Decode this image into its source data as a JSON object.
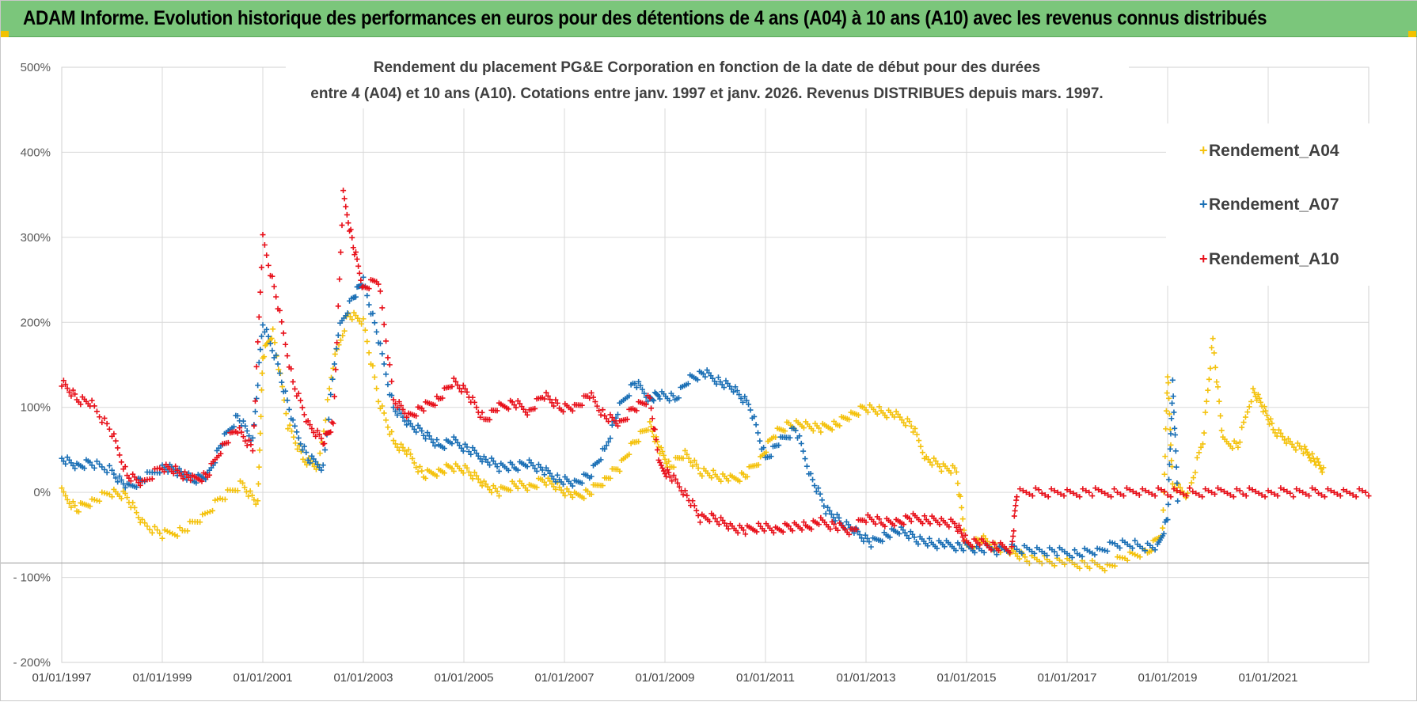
{
  "header": {
    "title": "ADAM Informe. Evolution historique des performances en euros pour des détentions de 4 ans (A04) à 10 ans (A10) avec les revenus connus distribués",
    "background": "#7bc67b"
  },
  "chart_data": {
    "type": "scatter",
    "title_line1": "Rendement du placement PG&E Corporation en fonction de la date de début pour des durées",
    "title_line2": "entre 4 (A04) et 10 ans (A10).  Cotations entre janv. 1997 et janv. 2026.  Revenus DISTRIBUES depuis mars. 1997.",
    "xlabel": "",
    "ylabel": "",
    "xlim": [
      1997.0,
      2023.0
    ],
    "ylim": [
      -200,
      500
    ],
    "y_ticks": [
      500,
      400,
      300,
      200,
      100,
      0,
      -100,
      -200
    ],
    "y_tick_labels": [
      "500%",
      "400%",
      "300%",
      "200%",
      "100%",
      "0%",
      "- 100%",
      "- 200%"
    ],
    "x_ticks": [
      1997,
      1999,
      2001,
      2003,
      2005,
      2007,
      2009,
      2011,
      2013,
      2015,
      2017,
      2019,
      2021
    ],
    "x_tick_labels": [
      "01/01/1997",
      "01/01/1999",
      "01/01/2001",
      "01/01/2003",
      "01/01/2005",
      "01/01/2007",
      "01/01/2009",
      "01/01/2011",
      "01/01/2013",
      "01/01/2015",
      "01/01/2017",
      "01/01/2019",
      "01/01/2021"
    ],
    "reference_line_y": -83,
    "grid": true,
    "legend_position": "top-right",
    "marker": "+",
    "series": [
      {
        "name": "Rendement_A04",
        "color": "#f4c20d",
        "points": [
          [
            1997.0,
            0
          ],
          [
            1997.3,
            -20
          ],
          [
            1997.6,
            -10
          ],
          [
            1998.0,
            0
          ],
          [
            1998.3,
            -5
          ],
          [
            1998.6,
            -35
          ],
          [
            1999.0,
            -50
          ],
          [
            1999.4,
            -45
          ],
          [
            1999.8,
            -30
          ],
          [
            2000.2,
            -5
          ],
          [
            2000.6,
            10
          ],
          [
            2000.9,
            -15
          ],
          [
            2001.0,
            160
          ],
          [
            2001.2,
            190
          ],
          [
            2001.5,
            80
          ],
          [
            2001.8,
            40
          ],
          [
            2002.1,
            30
          ],
          [
            2002.4,
            150
          ],
          [
            2002.7,
            210
          ],
          [
            2003.0,
            200
          ],
          [
            2003.3,
            110
          ],
          [
            2003.6,
            60
          ],
          [
            2003.9,
            45
          ],
          [
            2004.2,
            20
          ],
          [
            2004.5,
            25
          ],
          [
            2004.8,
            30
          ],
          [
            2005.1,
            25
          ],
          [
            2005.4,
            10
          ],
          [
            2005.7,
            0
          ],
          [
            2006.0,
            10
          ],
          [
            2006.3,
            5
          ],
          [
            2006.6,
            15
          ],
          [
            2006.9,
            5
          ],
          [
            2007.2,
            -5
          ],
          [
            2007.5,
            0
          ],
          [
            2007.8,
            15
          ],
          [
            2008.1,
            30
          ],
          [
            2008.4,
            60
          ],
          [
            2008.7,
            80
          ],
          [
            2008.9,
            50
          ],
          [
            2009.1,
            30
          ],
          [
            2009.4,
            45
          ],
          [
            2009.7,
            25
          ],
          [
            2010.0,
            20
          ],
          [
            2010.3,
            15
          ],
          [
            2010.6,
            20
          ],
          [
            2010.9,
            40
          ],
          [
            2011.2,
            70
          ],
          [
            2011.5,
            80
          ],
          [
            2011.8,
            80
          ],
          [
            2012.1,
            75
          ],
          [
            2012.4,
            80
          ],
          [
            2012.7,
            90
          ],
          [
            2013.0,
            100
          ],
          [
            2013.3,
            95
          ],
          [
            2013.6,
            90
          ],
          [
            2013.9,
            80
          ],
          [
            2014.2,
            40
          ],
          [
            2014.5,
            30
          ],
          [
            2014.8,
            25
          ],
          [
            2015.0,
            -65
          ],
          [
            2015.3,
            -55
          ],
          [
            2015.6,
            -65
          ],
          [
            2015.9,
            -70
          ],
          [
            2016.2,
            -78
          ],
          [
            2016.6,
            -80
          ],
          [
            2017.0,
            -83
          ],
          [
            2017.4,
            -85
          ],
          [
            2017.8,
            -87
          ],
          [
            2018.2,
            -75
          ],
          [
            2018.6,
            -70
          ],
          [
            2018.9,
            -45
          ],
          [
            2019.0,
            140
          ],
          [
            2019.1,
            10
          ],
          [
            2019.4,
            -5
          ],
          [
            2019.7,
            60
          ],
          [
            2019.9,
            180
          ],
          [
            2020.1,
            60
          ],
          [
            2020.4,
            55
          ],
          [
            2020.7,
            120
          ],
          [
            2020.9,
            100
          ],
          [
            2021.1,
            75
          ],
          [
            2021.4,
            60
          ],
          [
            2021.7,
            50
          ],
          [
            2021.9,
            40
          ],
          [
            2022.1,
            25
          ]
        ]
      },
      {
        "name": "Rendement_A07",
        "color": "#1a6fb5",
        "points": [
          [
            1997.0,
            40
          ],
          [
            1997.3,
            30
          ],
          [
            1997.6,
            35
          ],
          [
            1998.0,
            25
          ],
          [
            1998.3,
            5
          ],
          [
            1998.6,
            15
          ],
          [
            1999.0,
            30
          ],
          [
            1999.3,
            25
          ],
          [
            1999.6,
            15
          ],
          [
            1999.9,
            20
          ],
          [
            2000.2,
            60
          ],
          [
            2000.5,
            90
          ],
          [
            2000.8,
            60
          ],
          [
            2001.0,
            200
          ],
          [
            2001.3,
            150
          ],
          [
            2001.6,
            80
          ],
          [
            2001.9,
            40
          ],
          [
            2002.2,
            30
          ],
          [
            2002.5,
            190
          ],
          [
            2002.8,
            230
          ],
          [
            2003.0,
            250
          ],
          [
            2003.3,
            180
          ],
          [
            2003.6,
            100
          ],
          [
            2003.9,
            80
          ],
          [
            2004.2,
            70
          ],
          [
            2004.5,
            55
          ],
          [
            2004.8,
            60
          ],
          [
            2005.1,
            50
          ],
          [
            2005.4,
            40
          ],
          [
            2005.7,
            30
          ],
          [
            2006.0,
            30
          ],
          [
            2006.3,
            35
          ],
          [
            2006.6,
            25
          ],
          [
            2006.9,
            15
          ],
          [
            2007.2,
            10
          ],
          [
            2007.5,
            20
          ],
          [
            2007.8,
            50
          ],
          [
            2008.1,
            100
          ],
          [
            2008.4,
            130
          ],
          [
            2008.7,
            110
          ],
          [
            2008.9,
            115
          ],
          [
            2009.2,
            110
          ],
          [
            2009.5,
            135
          ],
          [
            2009.8,
            140
          ],
          [
            2010.1,
            130
          ],
          [
            2010.4,
            120
          ],
          [
            2010.7,
            100
          ],
          [
            2011.0,
            40
          ],
          [
            2011.3,
            60
          ],
          [
            2011.6,
            75
          ],
          [
            2011.9,
            20
          ],
          [
            2012.2,
            -20
          ],
          [
            2012.5,
            -35
          ],
          [
            2012.8,
            -45
          ],
          [
            2013.1,
            -60
          ],
          [
            2013.4,
            -50
          ],
          [
            2013.7,
            -45
          ],
          [
            2014.0,
            -55
          ],
          [
            2014.3,
            -60
          ],
          [
            2014.6,
            -62
          ],
          [
            2014.9,
            -64
          ],
          [
            2015.2,
            -66
          ],
          [
            2015.6,
            -68
          ],
          [
            2016.0,
            -66
          ],
          [
            2016.4,
            -68
          ],
          [
            2016.8,
            -70
          ],
          [
            2017.2,
            -72
          ],
          [
            2017.6,
            -70
          ],
          [
            2018.0,
            -60
          ],
          [
            2018.4,
            -62
          ],
          [
            2018.8,
            -66
          ],
          [
            2019.0,
            -30
          ],
          [
            2019.1,
            130
          ],
          [
            2019.2,
            -5
          ]
        ]
      },
      {
        "name": "Rendement_A10",
        "color": "#e8101a",
        "points": [
          [
            1997.0,
            130
          ],
          [
            1997.3,
            110
          ],
          [
            1997.6,
            105
          ],
          [
            1998.0,
            70
          ],
          [
            1998.3,
            20
          ],
          [
            1998.6,
            10
          ],
          [
            1999.0,
            30
          ],
          [
            1999.3,
            25
          ],
          [
            1999.6,
            15
          ],
          [
            1999.9,
            20
          ],
          [
            2000.2,
            55
          ],
          [
            2000.5,
            75
          ],
          [
            2000.8,
            50
          ],
          [
            2001.0,
            300
          ],
          [
            2001.3,
            220
          ],
          [
            2001.6,
            130
          ],
          [
            2001.9,
            80
          ],
          [
            2002.2,
            60
          ],
          [
            2002.4,
            80
          ],
          [
            2002.6,
            350
          ],
          [
            2002.8,
            290
          ],
          [
            2003.0,
            240
          ],
          [
            2003.3,
            250
          ],
          [
            2003.6,
            110
          ],
          [
            2003.9,
            90
          ],
          [
            2004.2,
            100
          ],
          [
            2004.5,
            110
          ],
          [
            2004.8,
            130
          ],
          [
            2005.1,
            115
          ],
          [
            2005.4,
            85
          ],
          [
            2005.7,
            100
          ],
          [
            2006.0,
            105
          ],
          [
            2006.3,
            95
          ],
          [
            2006.6,
            115
          ],
          [
            2006.9,
            100
          ],
          [
            2007.2,
            100
          ],
          [
            2007.5,
            115
          ],
          [
            2007.8,
            90
          ],
          [
            2008.1,
            80
          ],
          [
            2008.4,
            100
          ],
          [
            2008.7,
            110
          ],
          [
            2008.9,
            30
          ],
          [
            2009.1,
            20
          ],
          [
            2009.4,
            0
          ],
          [
            2009.7,
            -30
          ],
          [
            2010.0,
            -30
          ],
          [
            2010.3,
            -40
          ],
          [
            2010.6,
            -45
          ],
          [
            2010.9,
            -40
          ],
          [
            2011.2,
            -45
          ],
          [
            2011.5,
            -40
          ],
          [
            2011.8,
            -40
          ],
          [
            2012.1,
            -35
          ],
          [
            2012.4,
            -40
          ],
          [
            2012.7,
            -45
          ],
          [
            2013.0,
            -30
          ],
          [
            2013.3,
            -35
          ],
          [
            2013.6,
            -35
          ],
          [
            2013.9,
            -30
          ],
          [
            2014.2,
            -32
          ],
          [
            2014.5,
            -35
          ],
          [
            2014.8,
            -38
          ],
          [
            2015.0,
            -58
          ],
          [
            2015.3,
            -60
          ],
          [
            2015.6,
            -64
          ],
          [
            2015.9,
            -66
          ],
          [
            2016.0,
            0
          ],
          [
            2016.5,
            0
          ],
          [
            2017.0,
            0
          ],
          [
            2017.5,
            0
          ],
          [
            2018.0,
            0
          ],
          [
            2018.5,
            0
          ],
          [
            2019.0,
            0
          ],
          [
            2019.5,
            0
          ],
          [
            2020.0,
            0
          ],
          [
            2020.5,
            0
          ],
          [
            2021.0,
            0
          ],
          [
            2021.5,
            0
          ],
          [
            2022.0,
            0
          ],
          [
            2022.5,
            0
          ],
          [
            2023.0,
            0
          ]
        ]
      }
    ]
  }
}
